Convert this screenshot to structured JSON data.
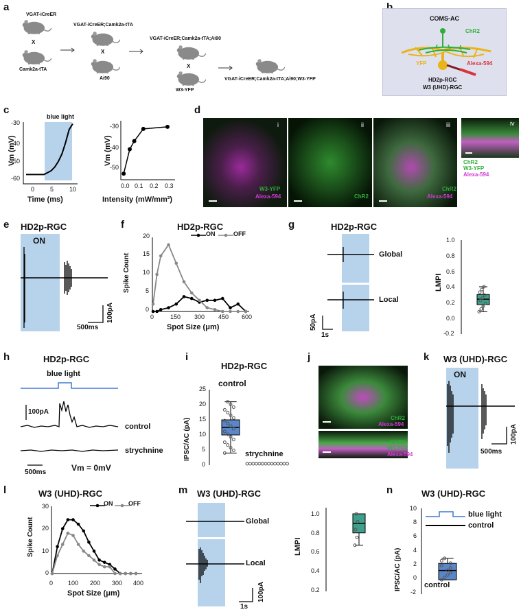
{
  "panels": {
    "a": "a",
    "b": "b",
    "c": "c",
    "d": "d",
    "e": "e",
    "f": "f",
    "g": "g",
    "h": "h",
    "i": "i",
    "j": "j",
    "k": "k",
    "l": "l",
    "m": "m",
    "n": "n"
  },
  "a": {
    "m1_label": "VGAT-iCreER",
    "cross1": "X",
    "m2_label": "Camk2a-tTA",
    "m3_label": "VGAT-iCreER;Camk2a-tTA",
    "cross2": "X",
    "m4_label": "Ai90",
    "m5_label": "VGAT-iCreER;Camk2a-tTA;Ai90",
    "cross3": "X",
    "m6_label": "W3-YFP",
    "m7_label": "VGAT-iCreER;Camk2a-tTA;Ai90;W3-YFP"
  },
  "b": {
    "coms": "COMS-AC",
    "chr2": "ChR2",
    "yfp": "YFP",
    "alexa": "Alexa-594",
    "cell1": "HD2p-RGC",
    "cell2": "W3 (UHD)-RGC"
  },
  "c": {
    "blue_light": "blue light",
    "ylabel": "Vm (mV)",
    "xlabel1": "Time (ms)",
    "xlabel2": "Intensity (mW/mm²)",
    "left_yticks": [
      "-30",
      "-40",
      "-50",
      "-60"
    ],
    "left_xticks": [
      "0",
      "5",
      "10"
    ],
    "right_yticks": [
      "-30",
      "-40",
      "-50"
    ],
    "right_xticks": [
      "0.0",
      "0.1",
      "0.2",
      "0.3"
    ]
  },
  "d": {
    "roman": [
      "i",
      "ii",
      "iii",
      "iv"
    ],
    "i_l1": "W3-YFP",
    "i_l2": "Alexa-594",
    "ii_l1": "ChR2",
    "iii_l1": "ChR2",
    "iii_l2": "Alexa-594",
    "iv_l1": "ChR2",
    "iv_l2": "W3-YFP",
    "iv_l3": "Alexa-594"
  },
  "e": {
    "title": "HD2p-RGC",
    "on": "ON",
    "scale_y": "100pA",
    "scale_x": "500ms"
  },
  "f": {
    "title": "HD2p-RGC",
    "ylabel": "Spike Count",
    "xlabel": "Spot Size (μm)",
    "leg_on": "ON",
    "leg_off": "OFF",
    "yticks": [
      "20",
      "15",
      "10",
      "5",
      "0"
    ],
    "xticks": [
      "0",
      "150",
      "300",
      "450",
      "600"
    ]
  },
  "g": {
    "title": "HD2p-RGC",
    "global": "Global",
    "local": "Local",
    "scale_y": "50pA",
    "scale_x": "1s",
    "lmpi": "LMPI",
    "yticks": [
      "1.0",
      "0.8",
      "0.6",
      "0.4",
      "0.2",
      "0.0",
      "-0.2"
    ]
  },
  "h": {
    "title": "HD2p-RGC",
    "blue_light": "blue light",
    "scale_y": "100pA",
    "control": "control",
    "strychnine": "strychnine",
    "scale_x": "500ms",
    "vm": "Vm = 0mV"
  },
  "i": {
    "title": "HD2p-RGC",
    "ylabel": "IPSC/AC (pA)",
    "control": "control",
    "strychnine": "strychnine",
    "yticks": [
      "25",
      "20",
      "15",
      "10",
      "5",
      "0"
    ]
  },
  "j": {
    "l1": "ChR2",
    "l2": "Alexa-594",
    "l3": "ChR2",
    "l4": "W3-YFP",
    "l5": "Alexa-594"
  },
  "k": {
    "title": "W3 (UHD)-RGC",
    "on": "ON",
    "scale_y": "100pA",
    "scale_x": "500ms"
  },
  "l": {
    "title": "W3 (UHD)-RGC",
    "ylabel": "Spike Count",
    "xlabel": "Spot Size (μm)",
    "leg_on": "ON",
    "leg_off": "OFF",
    "yticks": [
      "30",
      "20",
      "10",
      "0"
    ],
    "xticks": [
      "0",
      "100",
      "200",
      "300",
      "400"
    ]
  },
  "m": {
    "title": "W3 (UHD)-RGC",
    "global": "Global",
    "local": "Local",
    "scale_y": "100pA",
    "scale_x": "1s",
    "lmpi": "LMPI",
    "yticks": [
      "1.0",
      "0.8",
      "0.6",
      "0.4",
      "0.2"
    ]
  },
  "n": {
    "title": "W3 (UHD)-RGC",
    "ylabel": "IPSC/AC (pA)",
    "blue_light": "blue light",
    "control_trace": "control",
    "control": "control",
    "yticks": [
      "10",
      "8",
      "6",
      "4",
      "2",
      "0",
      "-2"
    ]
  },
  "colors": {
    "blue_shade": "#b7d3ec",
    "green": "#2fae3a",
    "magenta": "#d23cd2",
    "yellow": "#e9b41a",
    "teal": "#3f9f8a",
    "box_blue": "#5b86c8"
  },
  "chart_data": [
    {
      "panel": "c-left",
      "type": "line",
      "xlabel": "Time (ms)",
      "ylabel": "Vm (mV)",
      "xlim": [
        -3,
        10
      ],
      "ylim": [
        -62,
        -28
      ],
      "x": [
        -3,
        -1,
        0,
        1,
        2,
        3,
        4,
        5,
        6,
        7,
        8,
        9,
        10
      ],
      "y": [
        -57,
        -57,
        -57,
        -57,
        -57,
        -56,
        -55,
        -53,
        -50,
        -46,
        -40,
        -33,
        -30
      ]
    },
    {
      "panel": "c-right",
      "type": "line",
      "xlabel": "Intensity (mW/mm²)",
      "ylabel": "Vm (mV)",
      "xlim": [
        0,
        0.35
      ],
      "ylim": [
        -57,
        -28
      ],
      "x": [
        0.01,
        0.05,
        0.08,
        0.14,
        0.3
      ],
      "y": [
        -54,
        -42,
        -38,
        -32,
        -31
      ]
    },
    {
      "panel": "f",
      "type": "line",
      "title": "HD2p-RGC",
      "xlabel": "Spot Size (μm)",
      "ylabel": "Spike Count",
      "ylim": [
        0,
        20
      ],
      "xlim": [
        0,
        600
      ],
      "x": [
        0,
        25,
        50,
        100,
        150,
        200,
        250,
        300,
        350,
        400,
        450,
        500,
        550,
        600
      ],
      "series": [
        {
          "name": "ON",
          "values": [
            0,
            0,
            0.5,
            1,
            2,
            4,
            3.5,
            2.5,
            3,
            3,
            3.5,
            1,
            2,
            0
          ]
        },
        {
          "name": "OFF",
          "values": [
            2,
            10,
            15,
            18,
            13,
            8,
            5,
            3,
            1,
            0.5,
            0,
            0,
            0,
            0
          ]
        }
      ]
    },
    {
      "panel": "g",
      "type": "box",
      "ylabel": "LMPI",
      "ylim": [
        -0.2,
        1.0
      ],
      "median": 0.24,
      "q1": 0.17,
      "q3": 0.3,
      "min": 0.08,
      "max": 0.4
    },
    {
      "panel": "i",
      "type": "box",
      "ylabel": "IPSC/AC (pA)",
      "ylim": [
        0,
        25
      ],
      "categories": [
        "control",
        "strychnine"
      ],
      "boxes": [
        {
          "median": 12.5,
          "q1": 10,
          "q3": 15,
          "min": 4,
          "max": 21
        },
        {
          "median": 0,
          "q1": 0,
          "q3": 0,
          "min": 0,
          "max": 0
        }
      ]
    },
    {
      "panel": "l",
      "type": "line",
      "title": "W3 (UHD)-RGC",
      "xlabel": "Spot Size (μm)",
      "ylabel": "Spike Count",
      "ylim": [
        0,
        30
      ],
      "xlim": [
        0,
        400
      ],
      "x": [
        0,
        25,
        50,
        75,
        100,
        125,
        150,
        175,
        200,
        225,
        250,
        275,
        300,
        325,
        350,
        375,
        400
      ],
      "series": [
        {
          "name": "ON",
          "values": [
            0,
            12,
            20,
            24,
            24,
            22,
            19,
            14,
            10,
            6,
            5,
            4,
            2,
            0,
            0,
            0,
            0
          ]
        },
        {
          "name": "OFF",
          "values": [
            0,
            8,
            13,
            18,
            17,
            13,
            10,
            8,
            6,
            4,
            3,
            3,
            0,
            0,
            0,
            0,
            0
          ]
        }
      ]
    },
    {
      "panel": "m",
      "type": "box",
      "ylabel": "LMPI",
      "ylim": [
        0.2,
        1.0
      ],
      "median": 0.9,
      "q1": 0.8,
      "q3": 1.0,
      "min": 0.67,
      "max": 1.0
    },
    {
      "panel": "n",
      "type": "box",
      "ylabel": "IPSC/AC (pA)",
      "ylim": [
        -2,
        10
      ],
      "categories": [
        "control"
      ],
      "boxes": [
        {
          "median": 1.3,
          "q1": 0,
          "q3": 2.3,
          "min": 0,
          "max": 3.0
        }
      ]
    }
  ]
}
